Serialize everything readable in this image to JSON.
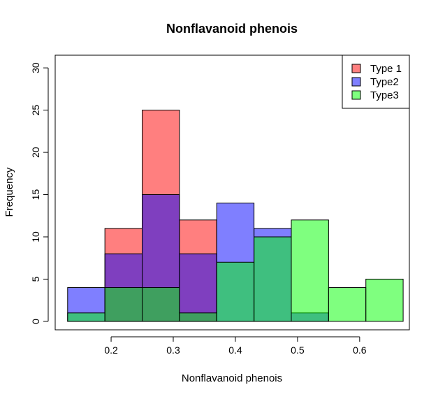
{
  "chart_data": {
    "type": "histogram",
    "title": "Nonflavanoid phenois",
    "xlabel": "Nonflavanoid phenois",
    "ylabel": "Frequency",
    "xlim": [
      0.11,
      0.68
    ],
    "ylim": [
      -1,
      31.5
    ],
    "xticks": [
      "0.2",
      "0.3",
      "0.4",
      "0.5",
      "0.6"
    ],
    "yticks": [
      "0",
      "5",
      "10",
      "15",
      "20",
      "25",
      "30"
    ],
    "bin_edges": [
      0.13,
      0.19,
      0.25,
      0.31,
      0.37,
      0.43,
      0.49,
      0.55,
      0.61,
      0.67
    ],
    "legend": {
      "position": "top-right"
    },
    "series": [
      {
        "name": "Type 1",
        "color": "#ff8080",
        "values": [
          0,
          11,
          25,
          12,
          0,
          0,
          0,
          0,
          0
        ]
      },
      {
        "name": "Type2",
        "color": "#8080ff",
        "values": [
          4,
          8,
          15,
          8,
          14,
          11,
          1,
          0,
          0
        ]
      },
      {
        "name": "Type3",
        "color": "#80ff80",
        "values": [
          1,
          4,
          4,
          1,
          7,
          10,
          12,
          4,
          5
        ]
      }
    ]
  }
}
